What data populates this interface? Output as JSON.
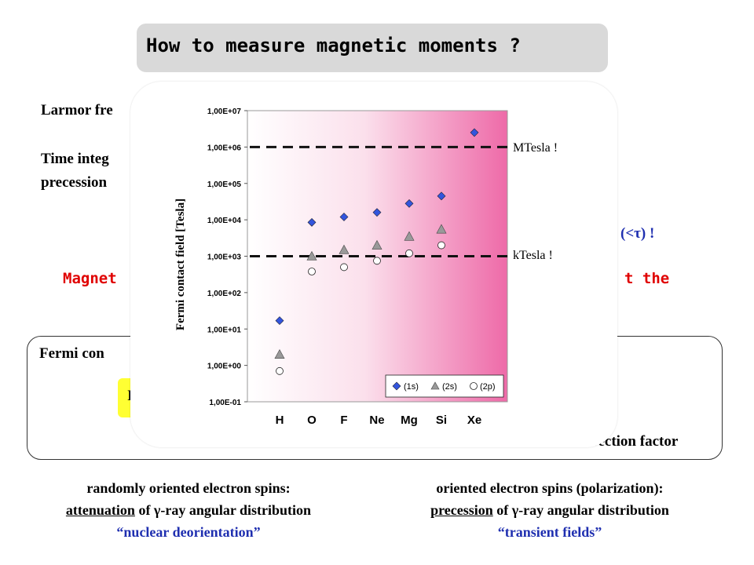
{
  "slide": {
    "title": "How to measure magnetic moments ?",
    "larmor_partial": "Larmor fre",
    "time_partial_1": "Time integ",
    "time_partial_2": "precession",
    "tau_partial": "(<τ) !",
    "magnet_partial": "Magnet",
    "at_the_partial": "t the",
    "fermi_partial": "Fermi con",
    "yellow_partial": "I",
    "correction_partial": "correction factor"
  },
  "bottom": {
    "left_line1": "randomly oriented electron spins:",
    "left_line2_underlined": "attenuation",
    "left_line2_rest": " of γ-ray angular distribution",
    "left_line3": "“nuclear deorientation”",
    "right_line1": "oriented electron spins (polarization):",
    "right_line2_underlined": "precession",
    "right_line2_rest": " of γ-ray angular distribution",
    "right_line3": "“transient fields”"
  },
  "annotations": {
    "mtesla": "MTesla !",
    "ktesla": "kTesla !"
  },
  "colors": {
    "series_1s": "#3355dd",
    "series_2s": "#999999",
    "series_2p": "#ffffff",
    "red": "#e00000",
    "blue": "#1f2fb0"
  },
  "chart_data": {
    "type": "scatter",
    "ylabel": "Fermi contact field [Tesla]",
    "xlabel": "",
    "yscale": "log",
    "ylim": [
      0.1,
      10000000
    ],
    "ytick_labels": [
      "1,00E-01",
      "1,00E+00",
      "1,00E+01",
      "1,00E+02",
      "1,00E+03",
      "1,00E+04",
      "1,00E+05",
      "1,00E+06",
      "1,00E+07"
    ],
    "categories": [
      "H",
      "O",
      "F",
      "Ne",
      "Mg",
      "Si",
      "Xe"
    ],
    "series": [
      {
        "name": "(1s)",
        "marker": "diamond",
        "values": [
          17,
          8500,
          12000,
          16000,
          28000,
          45000,
          2500000
        ]
      },
      {
        "name": "(2s)",
        "marker": "triangle",
        "values": [
          2,
          1000,
          1500,
          2000,
          3500,
          5500,
          null
        ]
      },
      {
        "name": "(2p)",
        "marker": "circle",
        "values": [
          0.7,
          380,
          500,
          750,
          1200,
          2000,
          null
        ]
      }
    ],
    "reference_lines": [
      1000000,
      1000
    ],
    "legend": "bottom-right"
  }
}
